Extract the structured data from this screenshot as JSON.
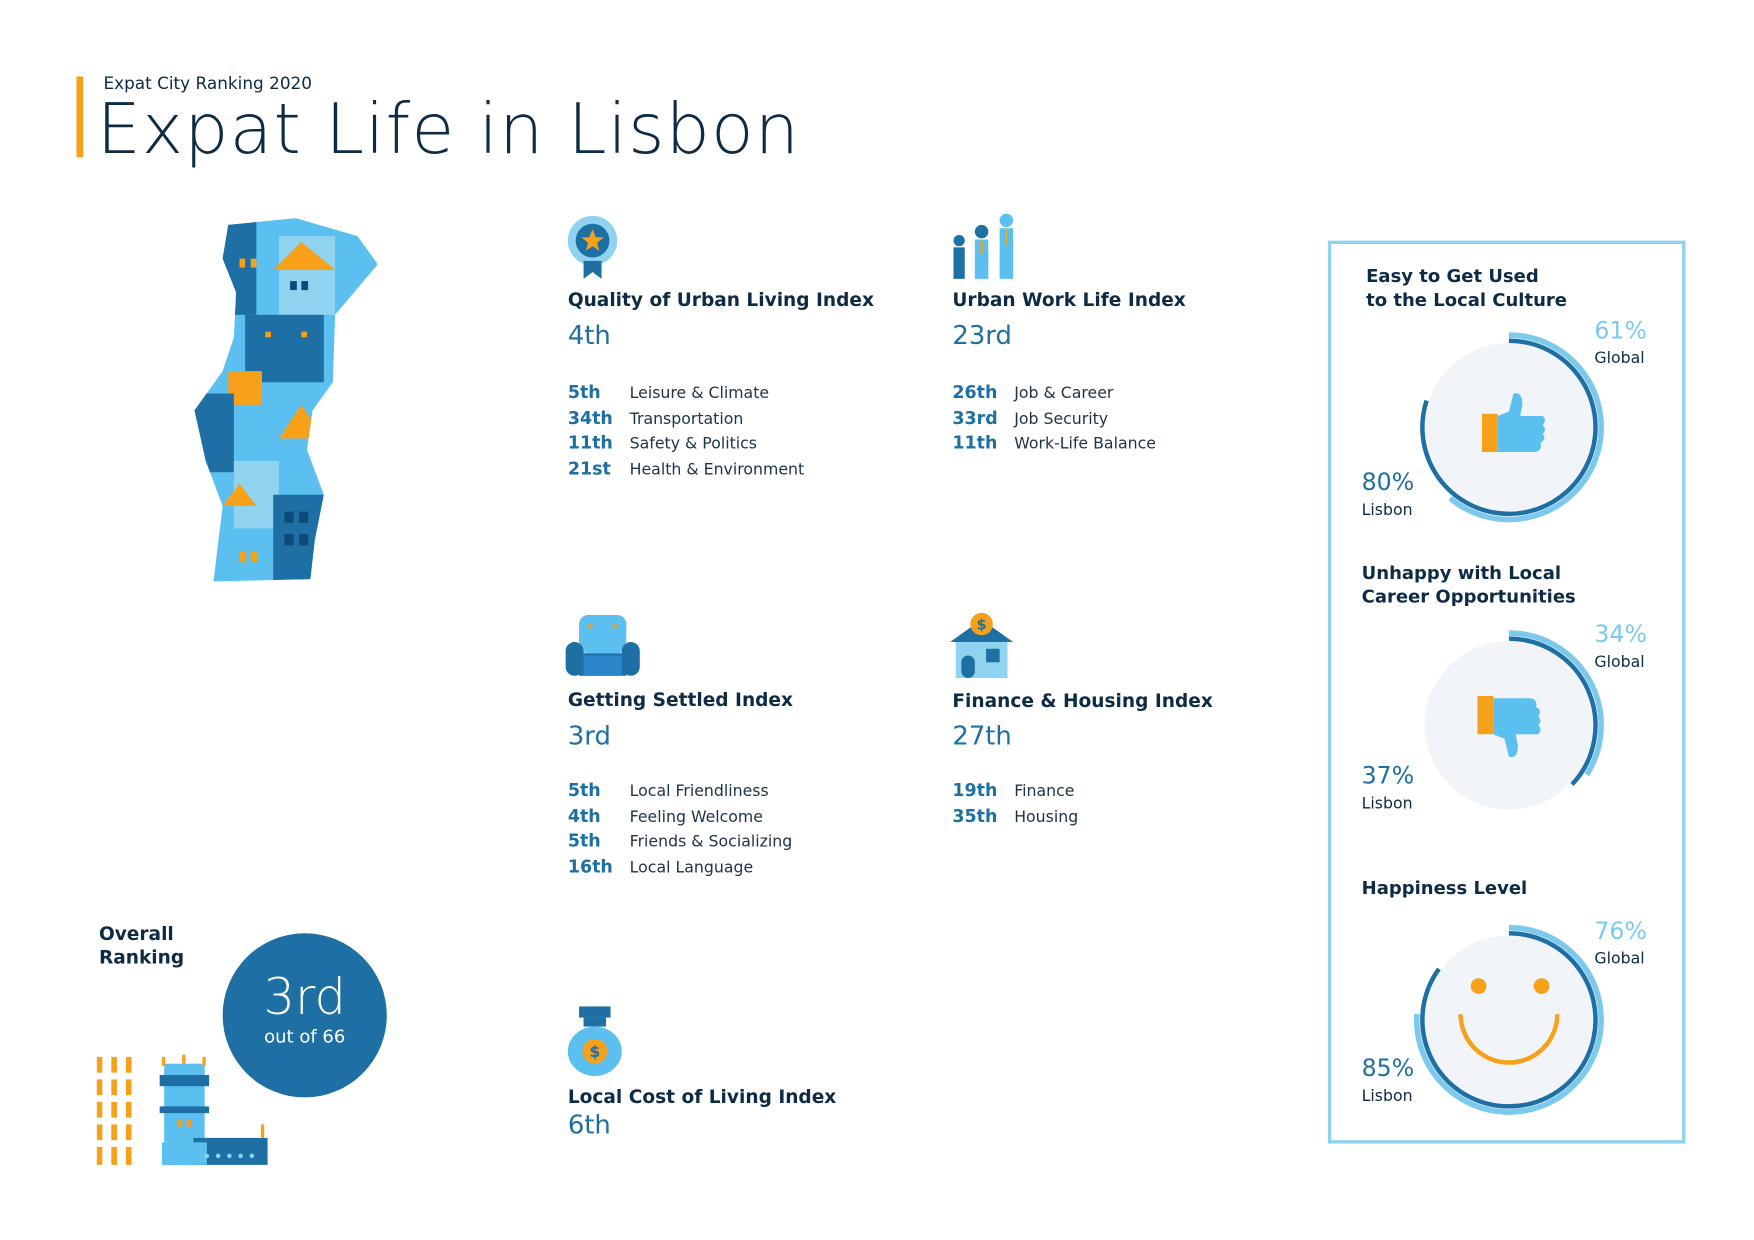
{
  "header": {
    "subtitle": "Expat City Ranking 2020",
    "title": "Expat Life in Lisbon"
  },
  "colors": {
    "navy": "#0d2b45",
    "blue": "#1e6fa3",
    "light_blue": "#5bc0f0",
    "orange": "#f7a11a",
    "panel_border": "#8fd3f0"
  },
  "indices": [
    {
      "icon": "award-badge-icon",
      "title": "Quality of Urban Living Index",
      "rank": "4th",
      "items": [
        {
          "rank": "5th",
          "label": "Leisure & Climate"
        },
        {
          "rank": "34th",
          "label": "Transportation"
        },
        {
          "rank": "11th",
          "label": "Safety & Politics"
        },
        {
          "rank": "21st",
          "label": "Health & Environment"
        }
      ]
    },
    {
      "icon": "workers-icon",
      "title": "Urban Work Life Index",
      "rank": "23rd",
      "items": [
        {
          "rank": "26th",
          "label": "Job & Career"
        },
        {
          "rank": "33rd",
          "label": "Job Security"
        },
        {
          "rank": "11th",
          "label": "Work-Life Balance"
        }
      ]
    },
    {
      "icon": "armchair-icon",
      "title": "Getting Settled Index",
      "rank": "3rd",
      "items": [
        {
          "rank": "5th",
          "label": "Local Friendliness"
        },
        {
          "rank": "4th",
          "label": "Feeling Welcome"
        },
        {
          "rank": "5th",
          "label": "Friends & Socializing"
        },
        {
          "rank": "16th",
          "label": "Local Language"
        }
      ]
    },
    {
      "icon": "house-dollar-icon",
      "title": "Finance & Housing Index",
      "rank": "27th",
      "items": [
        {
          "rank": "19th",
          "label": "Finance"
        },
        {
          "rank": "35th",
          "label": "Housing"
        }
      ]
    },
    {
      "icon": "money-bag-icon",
      "title": "Local Cost of Living Index",
      "rank": "6th",
      "items": []
    }
  ],
  "overall": {
    "label_line1": "Overall",
    "label_line2": "Ranking",
    "rank": "3rd",
    "out_of": "out of 66"
  },
  "panel": {
    "stats": [
      {
        "title1": "Easy to Get Used",
        "title2": "to the Local Culture",
        "icon": "thumbs-up-icon",
        "global": 61,
        "global_text": "61%",
        "global_label": "Global",
        "city": 80,
        "city_text": "80%",
        "city_label": "Lisbon"
      },
      {
        "title1": "Unhappy with Local",
        "title2": "Career Opportunities",
        "icon": "thumbs-down-icon",
        "global": 34,
        "global_text": "34%",
        "global_label": "Global",
        "city": 37,
        "city_text": "37%",
        "city_label": "Lisbon"
      },
      {
        "title1": "Happiness Level",
        "title2": "",
        "icon": "smiley-icon",
        "global": 76,
        "global_text": "76%",
        "global_label": "Global",
        "city": 85,
        "city_text": "85%",
        "city_label": "Lisbon"
      }
    ]
  }
}
